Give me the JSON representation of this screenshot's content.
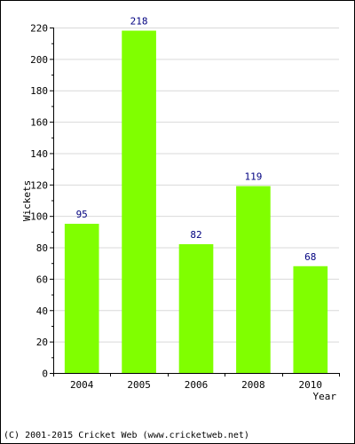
{
  "chart_data": {
    "type": "bar",
    "categories": [
      "2004",
      "2005",
      "2006",
      "2008",
      "2010"
    ],
    "values": [
      95,
      218,
      82,
      119,
      68
    ],
    "title": "",
    "xlabel": "Year",
    "ylabel": "Wickets",
    "ylim": [
      0,
      220
    ],
    "y_ticks": [
      "0",
      "20",
      "40",
      "60",
      "80",
      "100",
      "120",
      "140",
      "160",
      "180",
      "200",
      "220"
    ],
    "grid": true,
    "data_labels": true
  },
  "colors": {
    "bar": "#80ff00",
    "value_label": "#000080",
    "grid": "#d9d9d9",
    "axis": "#000000"
  },
  "footer": {
    "copyright": "(C) 2001-2015 Cricket Web (www.cricketweb.net)"
  }
}
